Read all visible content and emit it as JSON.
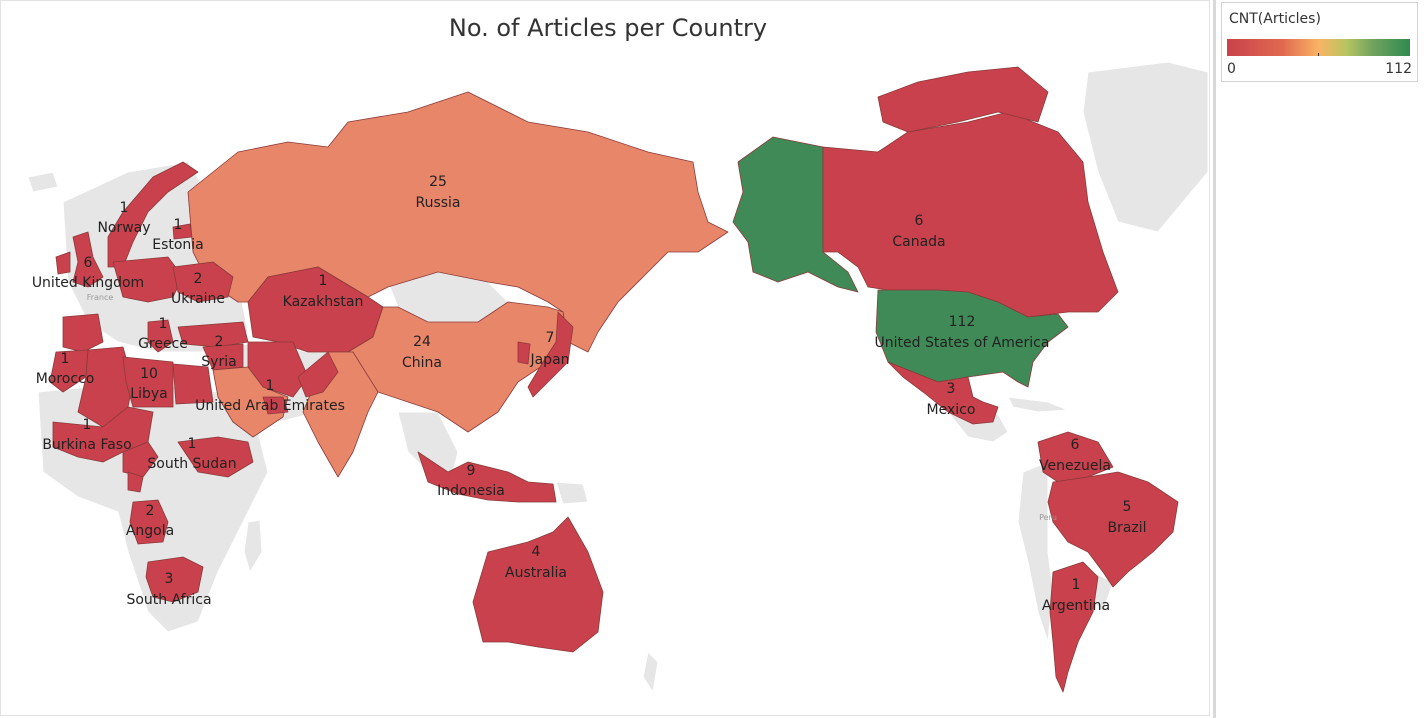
{
  "title": "No. of Articles per Country",
  "legend": {
    "title": "CNT(Articles)",
    "min_label": "0",
    "max_label": "112",
    "colors": [
      "#c9414c",
      "#e0694f",
      "#f9b364",
      "#b8c561",
      "#2f8a50"
    ]
  },
  "chart_data": {
    "type": "choropleth",
    "title": "No. of Articles per Country",
    "measure": "CNT(Articles)",
    "range": [
      0,
      112
    ],
    "regions": [
      {
        "name": "Norway",
        "value": 1
      },
      {
        "name": "Estonia",
        "value": 1
      },
      {
        "name": "United Kingdom",
        "value": 6
      },
      {
        "name": "Ukraine",
        "value": 2
      },
      {
        "name": "Greece",
        "value": 1
      },
      {
        "name": "Syria",
        "value": 2
      },
      {
        "name": "Morocco",
        "value": 1
      },
      {
        "name": "Libya",
        "value": 10
      },
      {
        "name": "United Arab Emirates",
        "value": 1
      },
      {
        "name": "Burkina Faso",
        "value": 1
      },
      {
        "name": "South Sudan",
        "value": 1
      },
      {
        "name": "Angola",
        "value": 2
      },
      {
        "name": "South Africa",
        "value": 3
      },
      {
        "name": "Russia",
        "value": 25
      },
      {
        "name": "Kazakhstan",
        "value": 1
      },
      {
        "name": "China",
        "value": 24
      },
      {
        "name": "Japan",
        "value": 7
      },
      {
        "name": "Indonesia",
        "value": 9
      },
      {
        "name": "Australia",
        "value": 4
      },
      {
        "name": "Canada",
        "value": 6
      },
      {
        "name": "United States of America",
        "value": 112
      },
      {
        "name": "Mexico",
        "value": 3
      },
      {
        "name": "Venezuela",
        "value": 6
      },
      {
        "name": "Brazil",
        "value": 5
      },
      {
        "name": "Argentina",
        "value": 1
      }
    ]
  },
  "background_labels": [
    "France",
    "Peru"
  ]
}
